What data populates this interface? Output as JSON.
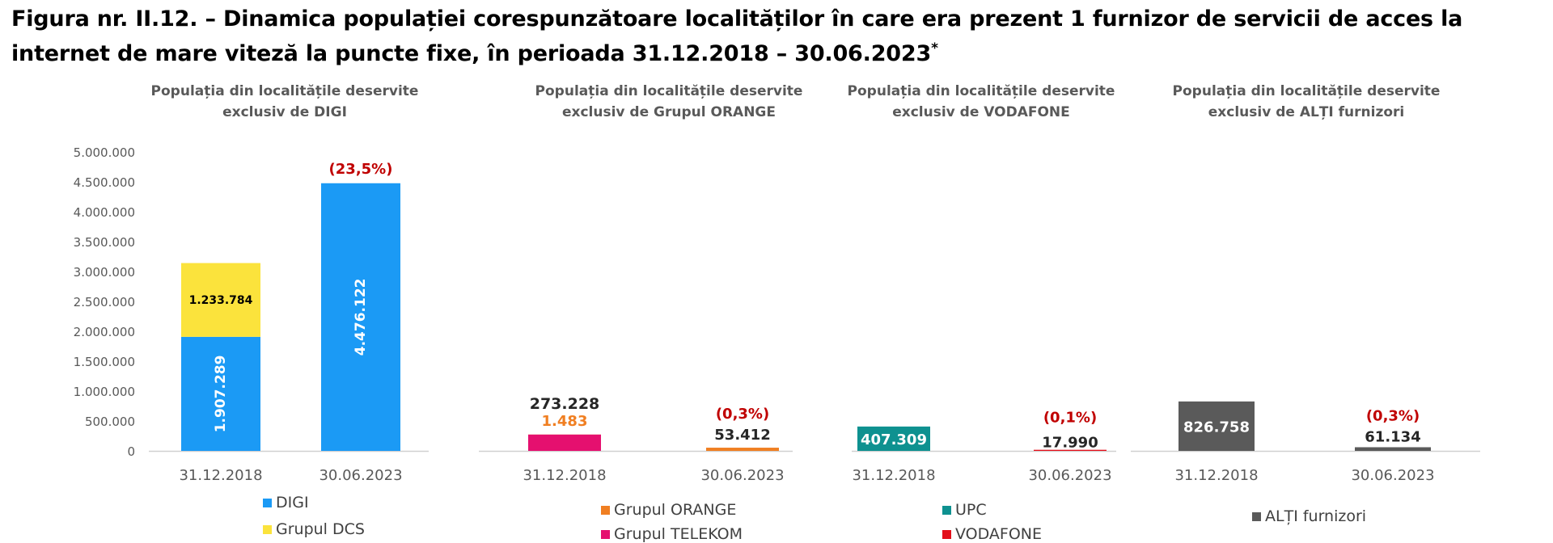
{
  "figure_title": "Figura nr. II.12. – Dinamica populației corespunzătoare localităților în care era prezent 1 furnizor de servicii de acces la internet de mare viteză la puncte fixe, în perioada 31.12.2018 – 30.06.2023",
  "figure_title_mark": "*",
  "colors": {
    "digi": "#1b9af5",
    "dcs": "#fbe33c",
    "orange": "#f07f22",
    "telekom": "#e5106f",
    "upc": "#0e9190",
    "vodafone": "#e30f1b",
    "alti": "#5a5a5a",
    "change": "#c00000",
    "axis_text": "#595959",
    "label_dark": "#262626"
  },
  "chart_data": [
    {
      "type": "bar",
      "stacked": true,
      "title": "Populația din localitățile deservite exclusiv de DIGI",
      "title_lines": [
        "Populația din localitățile deservite",
        "exclusiv de DIGI"
      ],
      "categories": [
        "31.12.2018",
        "30.06.2023"
      ],
      "series": [
        {
          "name": "DIGI",
          "color_key": "digi",
          "values": [
            1907289,
            4476122
          ],
          "labels": [
            "1.907.289",
            "4.476.122"
          ]
        },
        {
          "name": "Grupul DCS",
          "color_key": "dcs",
          "values": [
            1233784,
            0
          ],
          "labels": [
            "1.233.784",
            ""
          ]
        }
      ],
      "change_labels": [
        "",
        "(23,5%)"
      ],
      "ylim": [
        0,
        5000000
      ],
      "yticks": [
        0,
        500000,
        1000000,
        1500000,
        2000000,
        2500000,
        3000000,
        3500000,
        4000000,
        4500000,
        5000000
      ],
      "ytick_labels": [
        "0",
        "500.000",
        "1.000.000",
        "1.500.000",
        "2.000.000",
        "2.500.000",
        "3.000.000",
        "3.500.000",
        "4.000.000",
        "4.500.000",
        "5.000.000"
      ],
      "legend": [
        "DIGI",
        "Grupul DCS"
      ]
    },
    {
      "type": "bar",
      "stacked": true,
      "title": "Populația din localitățile deservite exclusiv de Grupul ORANGE",
      "title_lines": [
        "Populația din localitățile deservite",
        "exclusiv de Grupul ORANGE"
      ],
      "categories": [
        "31.12.2018",
        "30.06.2023"
      ],
      "series": [
        {
          "name": "Grupul ORANGE",
          "color_key": "orange",
          "values": [
            1483,
            53412
          ],
          "labels": [
            "1.483",
            "53.412"
          ]
        },
        {
          "name": "Grupul TELEKOM",
          "color_key": "telekom",
          "values": [
            273228,
            0
          ],
          "labels": [
            "273.228",
            ""
          ]
        }
      ],
      "change_labels": [
        "",
        "(0,3%)"
      ],
      "ylim": [
        0,
        5000000
      ],
      "legend": [
        "Grupul ORANGE",
        "Grupul TELEKOM"
      ]
    },
    {
      "type": "bar",
      "stacked": true,
      "title": "Populația din localitățile deservite exclusiv de VODAFONE",
      "title_lines": [
        "Populația din localitățile deservite",
        "exclusiv de VODAFONE"
      ],
      "categories": [
        "31.12.2018",
        "30.06.2023"
      ],
      "series": [
        {
          "name": "UPC",
          "color_key": "upc",
          "values": [
            407309,
            0
          ],
          "labels": [
            "407.309",
            ""
          ]
        },
        {
          "name": "VODAFONE",
          "color_key": "vodafone",
          "values": [
            0,
            17990
          ],
          "labels": [
            "",
            "17.990"
          ]
        }
      ],
      "change_labels": [
        "",
        "(0,1%)"
      ],
      "ylim": [
        0,
        5000000
      ],
      "legend": [
        "UPC",
        "VODAFONE"
      ]
    },
    {
      "type": "bar",
      "stacked": false,
      "title": "Populația din localitățile deservite exclusiv de ALȚI furnizori",
      "title_lines": [
        "Populația din localitățile deservite",
        "exclusiv de ALȚI furnizori"
      ],
      "categories": [
        "31.12.2018",
        "30.06.2023"
      ],
      "series": [
        {
          "name": "ALȚI furnizori",
          "color_key": "alti",
          "values": [
            826758,
            61134
          ],
          "labels": [
            "826.758",
            "61.134"
          ]
        }
      ],
      "change_labels": [
        "",
        "(0,3%)"
      ],
      "ylim": [
        0,
        5000000
      ],
      "legend": [
        "ALȚI furnizori"
      ]
    }
  ]
}
